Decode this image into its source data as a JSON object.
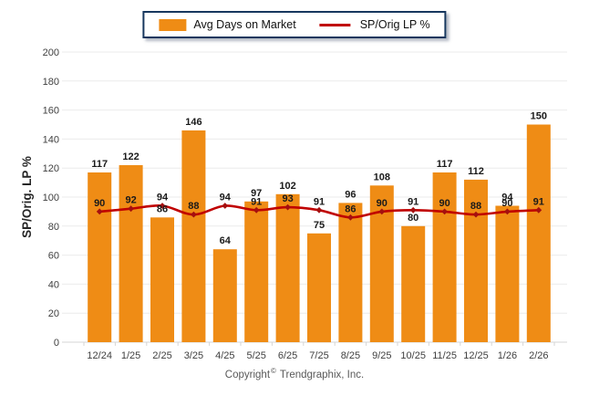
{
  "legend": {
    "bar_label": "Avg Days on Market",
    "line_label": "SP/Orig LP %"
  },
  "copyright": {
    "text_before": "Copyright",
    "symbol": "©",
    "text_after": "Trendgraphix, Inc."
  },
  "colors": {
    "bar": "#EF8C15",
    "line": "#C00000",
    "marker": "#A50F0F",
    "legend_border": "#17375E",
    "grid": "#EBEBEB",
    "axis": "#D6D6D6",
    "tick_label": "#404040",
    "data_label": "#1A1A1A",
    "axis_title": "#262626"
  },
  "chart_data": {
    "type": "bar",
    "categories": [
      "12/24",
      "1/25",
      "2/25",
      "3/25",
      "4/25",
      "5/25",
      "6/25",
      "7/25",
      "8/25",
      "9/25",
      "10/25",
      "11/25",
      "12/25",
      "1/26",
      "2/26"
    ],
    "series": [
      {
        "name": "Avg Days on Market",
        "type": "bar",
        "color": "#EF8C15",
        "values": [
          117,
          122,
          86,
          146,
          64,
          97,
          102,
          75,
          96,
          108,
          80,
          117,
          112,
          94,
          150
        ]
      },
      {
        "name": "SP/Orig LP %",
        "type": "line",
        "color": "#C00000",
        "values": [
          90,
          92,
          94,
          88,
          94,
          91,
          93,
          91,
          86,
          90,
          91,
          90,
          88,
          90,
          91
        ]
      }
    ],
    "title": "",
    "xlabel": "",
    "ylabel": "SP/Orig. LP %",
    "ylim": [
      0,
      200
    ],
    "ytick_step": 20,
    "grid": true,
    "legend_position": "top"
  }
}
